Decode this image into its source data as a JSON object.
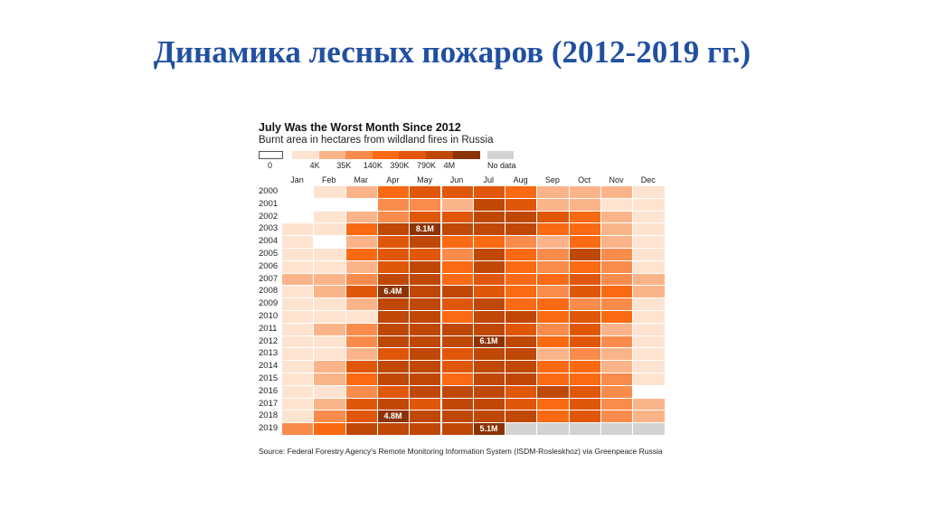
{
  "slide_title": "Динамика лесных пожаров (2012-2019 гг.)",
  "chart_data": {
    "type": "heatmap",
    "title": "July Was the Worst Month Since 2012",
    "subtitle": "Burnt area in hectares from wildland fires in Russia",
    "legend": {
      "zero_label": "0",
      "bin_labels": [
        "4K",
        "35K",
        "140K",
        "390K",
        "790K",
        "4M"
      ],
      "no_data_label": "No data",
      "colors": [
        "#ffffff",
        "#fde3d0",
        "#fbb48a",
        "#f98c4c",
        "#fa6a12",
        "#e0570a",
        "#bf4806",
        "#8c3304"
      ],
      "no_data_color": "#d3d3d3"
    },
    "categories": [
      "Jan",
      "Feb",
      "Mar",
      "Apr",
      "May",
      "Jun",
      "Jul",
      "Aug",
      "Sep",
      "Oct",
      "Nov",
      "Dec"
    ],
    "years": [
      "2000",
      "2001",
      "2002",
      "2003",
      "2004",
      "2005",
      "2006",
      "2007",
      "2008",
      "2009",
      "2010",
      "2011",
      "2012",
      "2013",
      "2014",
      "2015",
      "2016",
      "2017",
      "2018",
      "2019"
    ],
    "levels": [
      [
        0,
        1,
        2,
        4,
        5,
        5,
        5,
        4,
        2,
        2,
        2,
        1
      ],
      [
        0,
        0,
        0,
        3,
        3,
        2,
        6,
        5,
        2,
        2,
        1,
        1
      ],
      [
        0,
        1,
        2,
        3,
        5,
        5,
        6,
        6,
        5,
        4,
        2,
        1
      ],
      [
        1,
        1,
        4,
        6,
        7,
        6,
        6,
        6,
        4,
        4,
        2,
        1
      ],
      [
        1,
        0,
        2,
        5,
        6,
        4,
        4,
        3,
        2,
        4,
        2,
        1
      ],
      [
        1,
        1,
        4,
        5,
        5,
        3,
        6,
        4,
        3,
        6,
        3,
        1
      ],
      [
        1,
        1,
        2,
        5,
        6,
        4,
        6,
        4,
        3,
        4,
        3,
        1
      ],
      [
        2,
        2,
        3,
        6,
        6,
        4,
        5,
        4,
        4,
        5,
        3,
        2
      ],
      [
        1,
        2,
        5,
        7,
        6,
        6,
        5,
        4,
        3,
        5,
        4,
        2
      ],
      [
        1,
        1,
        2,
        6,
        6,
        5,
        6,
        4,
        4,
        3,
        3,
        1
      ],
      [
        1,
        1,
        1,
        6,
        6,
        4,
        6,
        6,
        4,
        5,
        4,
        1
      ],
      [
        1,
        2,
        3,
        6,
        6,
        6,
        6,
        5,
        3,
        5,
        2,
        1
      ],
      [
        1,
        1,
        3,
        6,
        6,
        6,
        7,
        6,
        4,
        5,
        3,
        1
      ],
      [
        1,
        1,
        2,
        5,
        6,
        5,
        6,
        6,
        2,
        3,
        2,
        1
      ],
      [
        1,
        2,
        5,
        6,
        6,
        5,
        6,
        6,
        4,
        4,
        2,
        1
      ],
      [
        1,
        2,
        4,
        6,
        6,
        4,
        6,
        6,
        4,
        4,
        3,
        1
      ],
      [
        1,
        1,
        3,
        5,
        6,
        6,
        6,
        5,
        6,
        5,
        3,
        0
      ],
      [
        1,
        2,
        5,
        6,
        5,
        6,
        6,
        5,
        4,
        5,
        3,
        2
      ],
      [
        1,
        3,
        5,
        7,
        6,
        6,
        6,
        6,
        4,
        5,
        3,
        2
      ],
      [
        3,
        4,
        6,
        6,
        6,
        6,
        7,
        -1,
        -1,
        -1,
        -1,
        -1
      ]
    ],
    "annotations": [
      {
        "year": "2003",
        "month": "May",
        "text": "8.1M"
      },
      {
        "year": "2008",
        "month": "Apr",
        "text": "6.4M"
      },
      {
        "year": "2012",
        "month": "Jul",
        "text": "6.1M"
      },
      {
        "year": "2018",
        "month": "Apr",
        "text": "4.8M"
      },
      {
        "year": "2019",
        "month": "Jul",
        "text": "5.1M"
      }
    ],
    "source": "Source: Federal Forestry Agency's Remote Monitoring Information System (ISDM-Rosleskhoz) via Greenpeace Russia"
  }
}
